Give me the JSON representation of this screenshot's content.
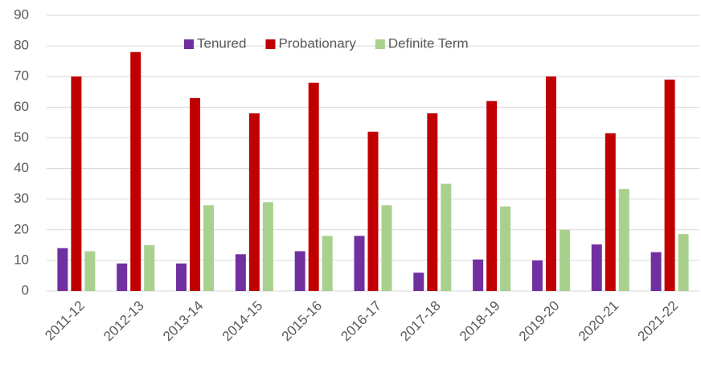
{
  "chart_data": {
    "type": "bar",
    "categories": [
      "2011-12",
      "2012-13",
      "2013-14",
      "2014-15",
      "2015-16",
      "2016-17",
      "2017-18",
      "2018-19",
      "2019-20",
      "2020-21",
      "2021-22"
    ],
    "series": [
      {
        "name": "Tenured",
        "color": "#7030a0",
        "values": [
          14,
          9,
          9,
          12,
          13,
          18,
          6,
          10.3,
          10,
          15.2,
          12.7
        ]
      },
      {
        "name": "Probationary",
        "color": "#c00000",
        "values": [
          70,
          78,
          63,
          58,
          68,
          52,
          58,
          62,
          70,
          51.5,
          69
        ]
      },
      {
        "name": "Definite Term",
        "color": "#a9d18e",
        "values": [
          13,
          15,
          28,
          29,
          18,
          28,
          35,
          27.6,
          20,
          33.3,
          18.6
        ]
      }
    ],
    "ylim": [
      0,
      90
    ],
    "yticks": [
      0,
      10,
      20,
      30,
      40,
      50,
      60,
      70,
      80,
      90
    ],
    "grid": true,
    "legend": "top"
  }
}
